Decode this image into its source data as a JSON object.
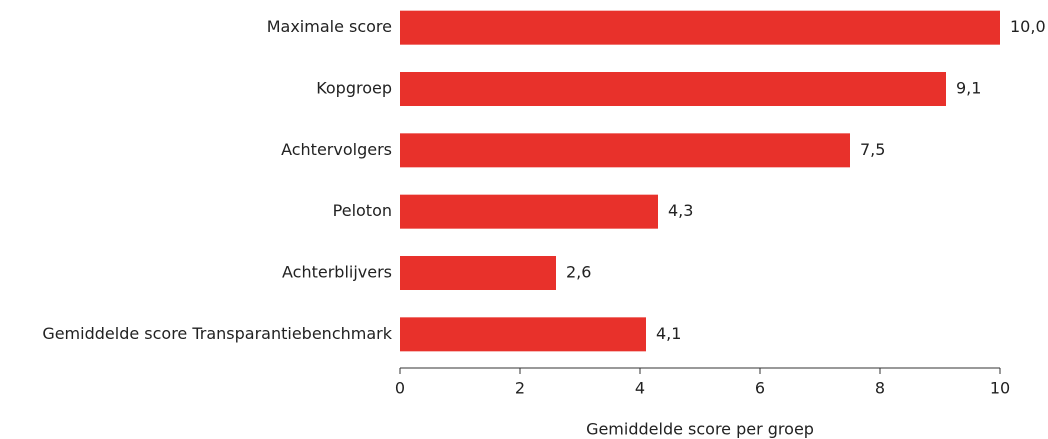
{
  "chart_data": {
    "type": "bar",
    "orientation": "horizontal",
    "categories": [
      "Maximale score",
      "Kopgroep",
      "Achtervolgers",
      "Peloton",
      "Achterblijvers",
      "Gemiddelde score Transparantiebenchmark"
    ],
    "values": [
      10.0,
      9.1,
      7.5,
      4.3,
      2.6,
      4.1
    ],
    "value_labels": [
      "10,0",
      "9,1",
      "7,5",
      "4,3",
      "2,6",
      "4,1"
    ],
    "color": "#e8312b",
    "xlabel": "Gemiddelde score per groep",
    "xlim": [
      0,
      10
    ],
    "xticks": [
      0,
      2,
      4,
      6,
      8,
      10
    ],
    "grid": false
  }
}
